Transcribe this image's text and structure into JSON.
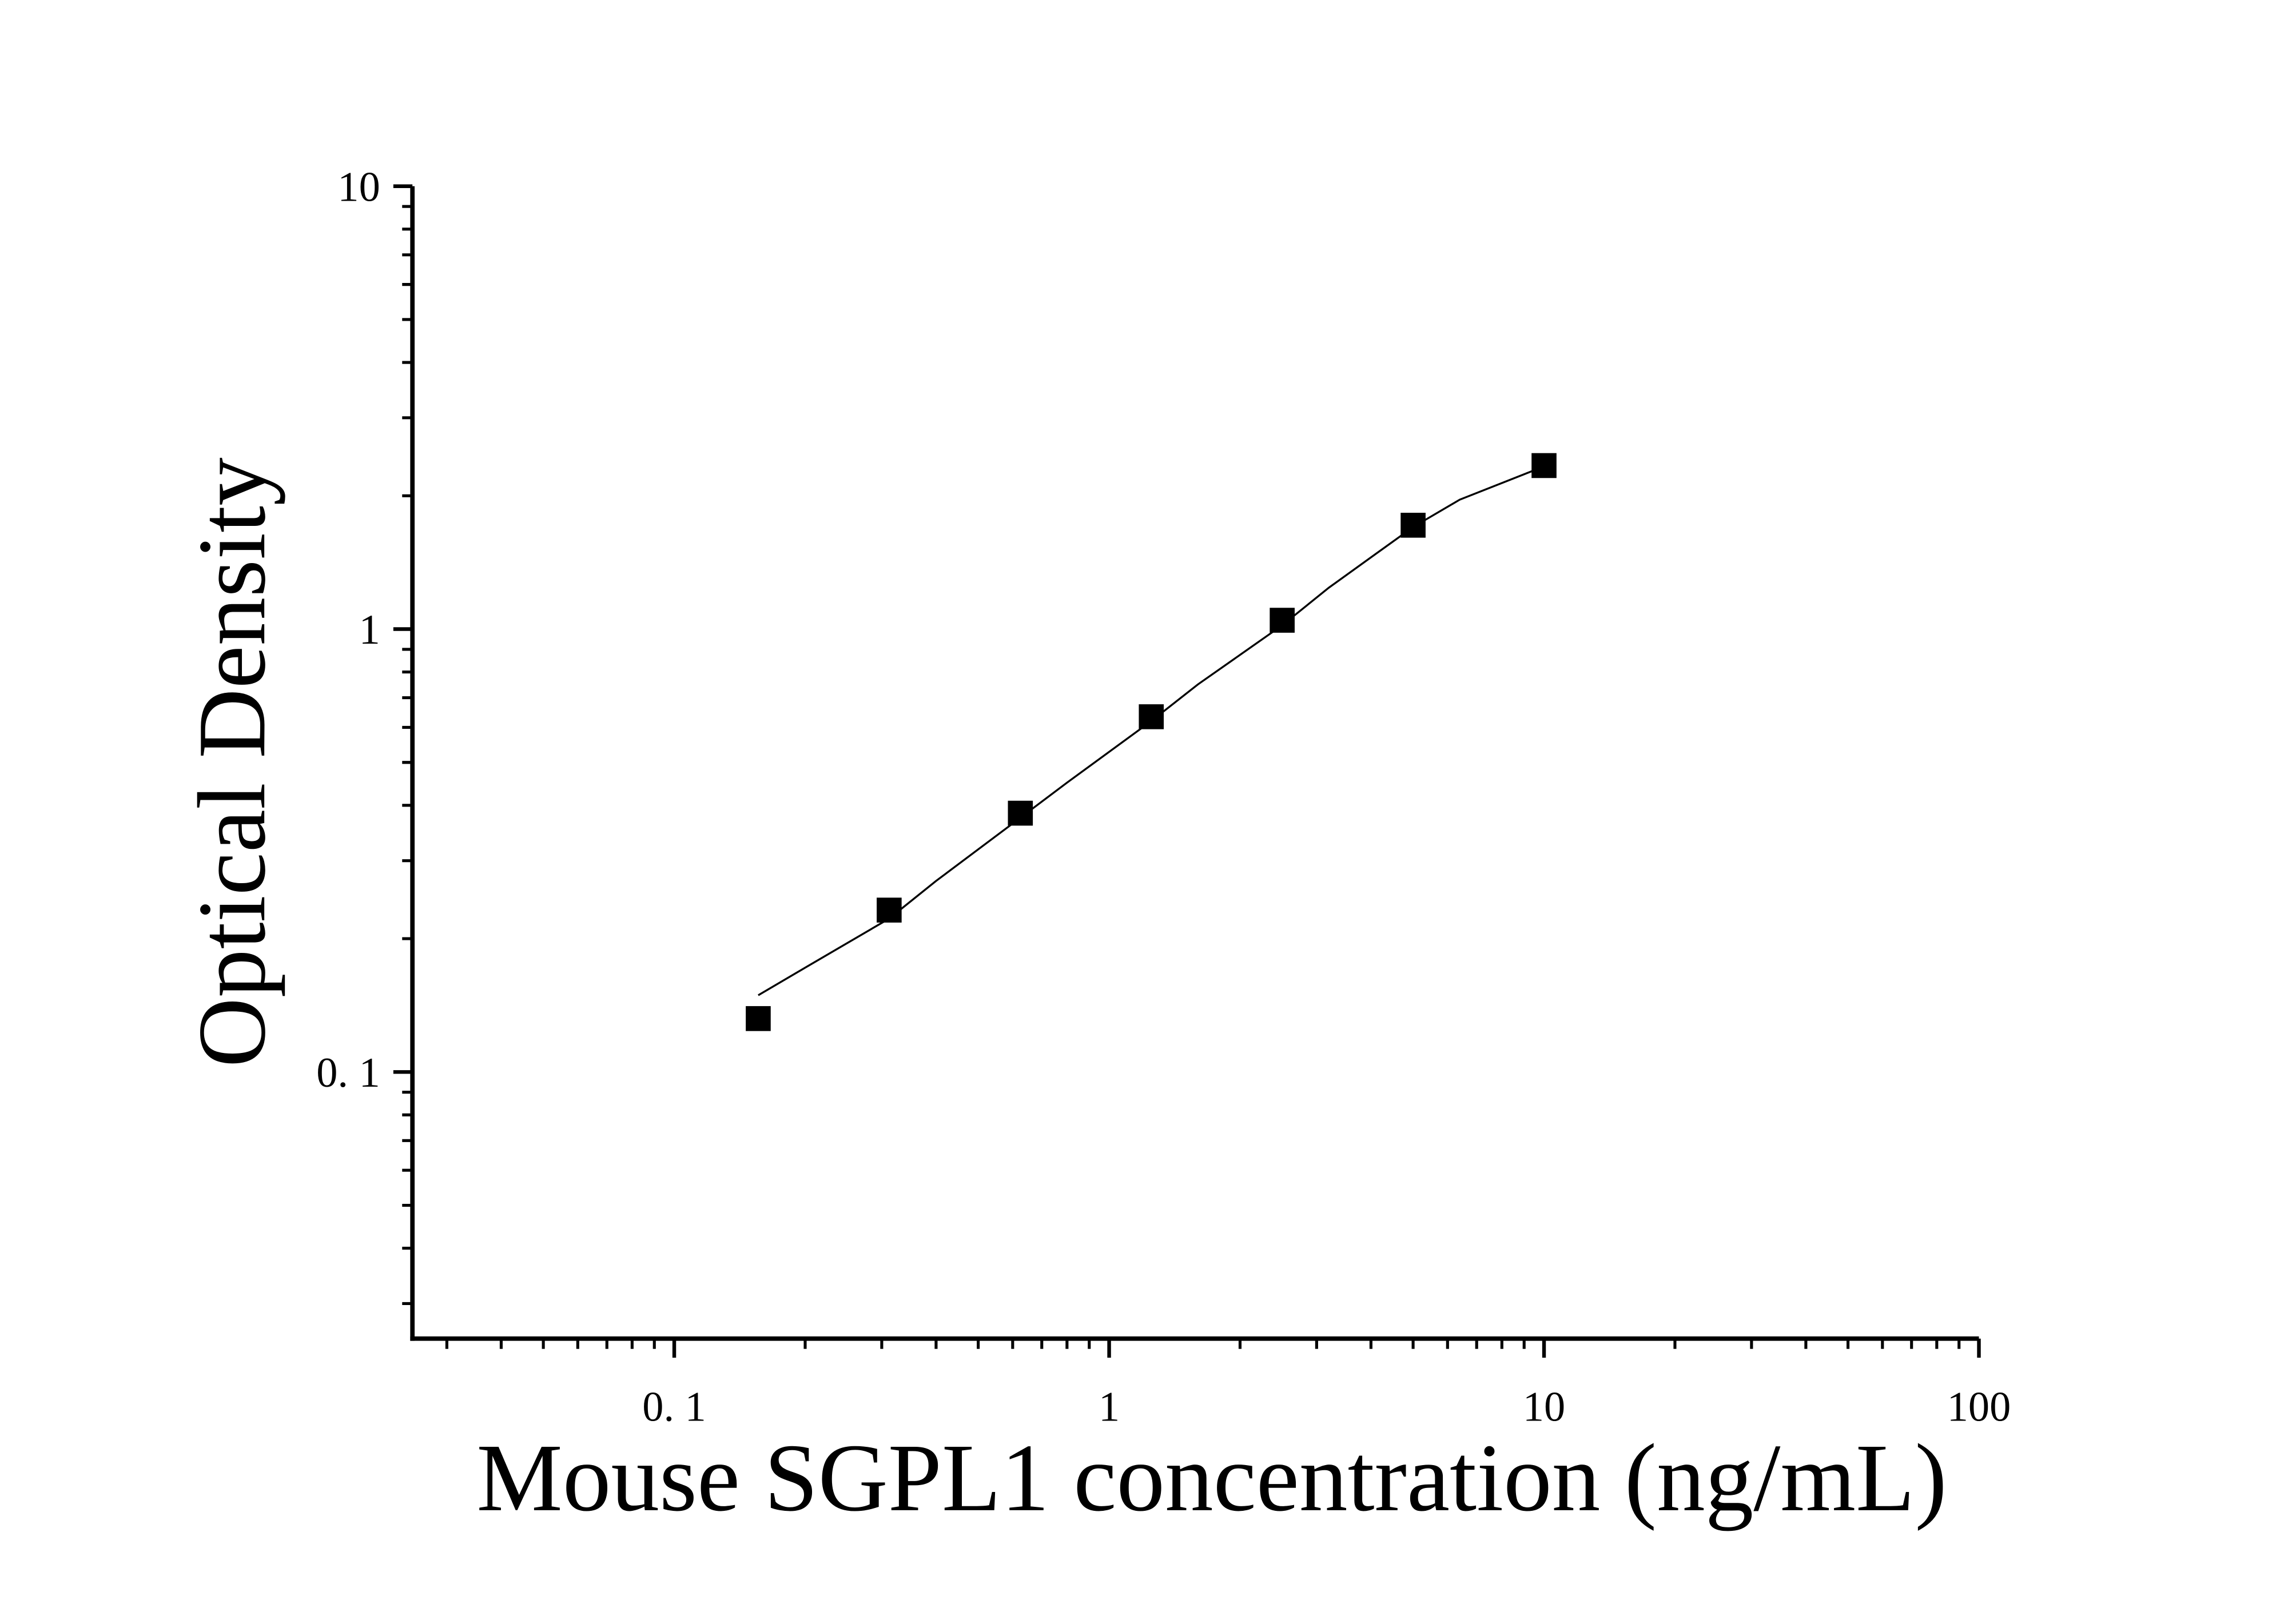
{
  "chart_data": {
    "type": "scatter",
    "x_label": "Mouse SGPL1 concentration (ng/mL)",
    "y_label": "Optical Density",
    "log_x": true,
    "log_y": true,
    "xlim": [
      0.025,
      100
    ],
    "ylim": [
      0.025,
      10
    ],
    "xticks": [
      {
        "value": 0.1,
        "label": "0. 1"
      },
      1,
      10,
      100
    ],
    "yticks": [
      {
        "value": 0.1,
        "label": "0. 1"
      },
      1,
      10
    ],
    "xminorticks": [
      0.03,
      0.04,
      0.05,
      0.06,
      0.07,
      0.08,
      0.09,
      0.2,
      0.3,
      0.4,
      0.5,
      0.6,
      0.7,
      0.8,
      0.9,
      2,
      3,
      4,
      5,
      6,
      7,
      8,
      9,
      20,
      30,
      40,
      50,
      60,
      70,
      80,
      90
    ],
    "yminorticks": [
      0.03,
      0.04,
      0.05,
      0.06,
      0.07,
      0.08,
      0.09,
      0.2,
      0.3,
      0.4,
      0.5,
      0.6,
      0.7,
      0.8,
      0.9,
      2,
      3,
      4,
      5,
      6,
      7,
      8,
      9
    ],
    "series": [
      {
        "style": "markers",
        "color": "#000000",
        "x": [
          0.156,
          0.312,
          0.625,
          1.25,
          2.5,
          5,
          10
        ],
        "values": [
          0.132,
          0.232,
          0.384,
          0.634,
          1.047,
          1.716,
          2.34
        ]
      },
      {
        "style": "line",
        "color": "#000000",
        "x": [
          0.156,
          0.2,
          0.312,
          0.4,
          0.625,
          0.8,
          1.25,
          1.6,
          2.5,
          3.2,
          5,
          6.4,
          10
        ],
        "values": [
          0.149,
          0.172,
          0.222,
          0.27,
          0.375,
          0.45,
          0.62,
          0.75,
          1.02,
          1.24,
          1.7,
          1.96,
          2.33
        ]
      }
    ]
  }
}
